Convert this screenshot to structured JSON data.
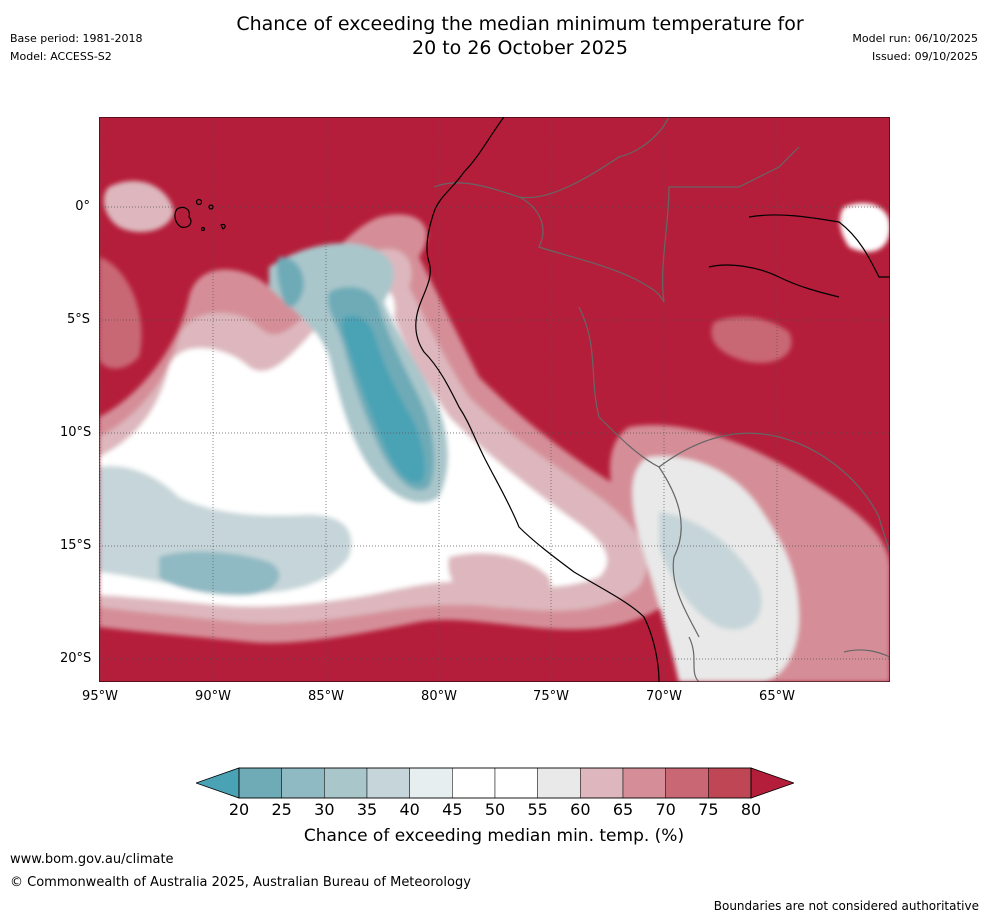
{
  "title_line1": "Chance of exceeding the median minimum temperature for",
  "title_line2": "20 to 26 October 2025",
  "meta_left": {
    "base_period": "Base period: 1981-2018",
    "model": "Model: ACCESS-S2"
  },
  "meta_right": {
    "model_run": "Model run: 06/10/2025",
    "issued": "Issued: 09/10/2025"
  },
  "map": {
    "lat_labels": [
      "0°",
      "5°S",
      "10°S",
      "15°S",
      "20°S"
    ],
    "lon_labels": [
      "95°W",
      "90°W",
      "85°W",
      "80°W",
      "75°W",
      "70°W",
      "65°W"
    ]
  },
  "colorbar": {
    "ticks": [
      "20",
      "25",
      "30",
      "35",
      "40",
      "45",
      "50",
      "55",
      "60",
      "65",
      "70",
      "75",
      "80"
    ],
    "colors": [
      "#4aa3b5",
      "#6eabb7",
      "#8fb9c3",
      "#a9c6cb",
      "#c6d5d9",
      "#e7eef0",
      "#ffffff",
      "#ffffff",
      "#e9e9e9",
      "#ddb7bd",
      "#d58e98",
      "#c96774",
      "#bf4755",
      "#b51e3a"
    ],
    "label": "Chance of exceeding median min. temp. (%)"
  },
  "footer": {
    "website": "www.bom.gov.au/climate",
    "copyright": "© Commonwealth of Australia 2025, Australian Bureau of Meteorology",
    "disclaimer": "Boundaries are not considered authoritative"
  }
}
